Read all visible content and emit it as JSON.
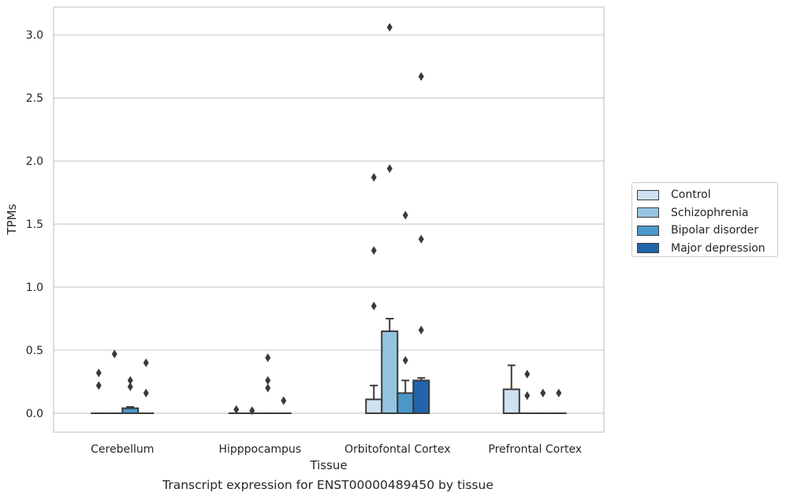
{
  "chart_data": {
    "type": "bar",
    "ylabel": "TPMs",
    "xlabel": "Tissue",
    "caption": "Transcript expression for ENST00000489450 by tissue",
    "ylim": [
      -0.15,
      3.22
    ],
    "yticks": [
      0.0,
      0.5,
      1.0,
      1.5,
      2.0,
      2.5,
      3.0
    ],
    "ytick_labels": [
      "0.0",
      "0.5",
      "1.0",
      "1.5",
      "2.0",
      "2.5",
      "3.0"
    ],
    "grid": true,
    "legend_position": "center-right",
    "categories": [
      "Cerebellum",
      "Hipppocampus",
      "Orbitofontal Cortex",
      "Prefrontal Cortex"
    ],
    "series": [
      {
        "name": "Control",
        "color": "#d0e1f2",
        "values": [
          0.0,
          0.0,
          0.11,
          0.19
        ],
        "whisker": [
          0.0,
          0.0,
          0.22,
          0.38
        ],
        "outliers": [
          [
            0.32,
            0.22
          ],
          [
            0.03
          ],
          [
            0.85,
            1.29,
            1.87
          ],
          []
        ]
      },
      {
        "name": "Schizophrenia",
        "color": "#94c4df",
        "values": [
          0.0,
          0.0,
          0.65,
          0.0
        ],
        "whisker": [
          0.0,
          0.0,
          0.75,
          0.0
        ],
        "outliers": [
          [
            0.47
          ],
          [
            0.02
          ],
          [
            1.94,
            3.06
          ],
          [
            0.31,
            0.14
          ]
        ]
      },
      {
        "name": "Bipolar disorder",
        "color": "#4a98c9",
        "values": [
          0.04,
          0.0,
          0.16,
          0.0
        ],
        "whisker": [
          0.05,
          0.0,
          0.26,
          0.0
        ],
        "outliers": [
          [
            0.26,
            0.21
          ],
          [
            0.44,
            0.26,
            0.2
          ],
          [
            0.42,
            1.57
          ],
          [
            0.16
          ]
        ]
      },
      {
        "name": "Major depression",
        "color": "#2164ab",
        "values": [
          0.0,
          0.0,
          0.26,
          0.0
        ],
        "whisker": [
          0.0,
          0.0,
          0.28,
          0.0
        ],
        "outliers": [
          [
            0.4,
            0.16
          ],
          [
            0.1
          ],
          [
            0.66,
            1.38,
            2.67
          ],
          [
            0.16
          ]
        ]
      }
    ]
  }
}
